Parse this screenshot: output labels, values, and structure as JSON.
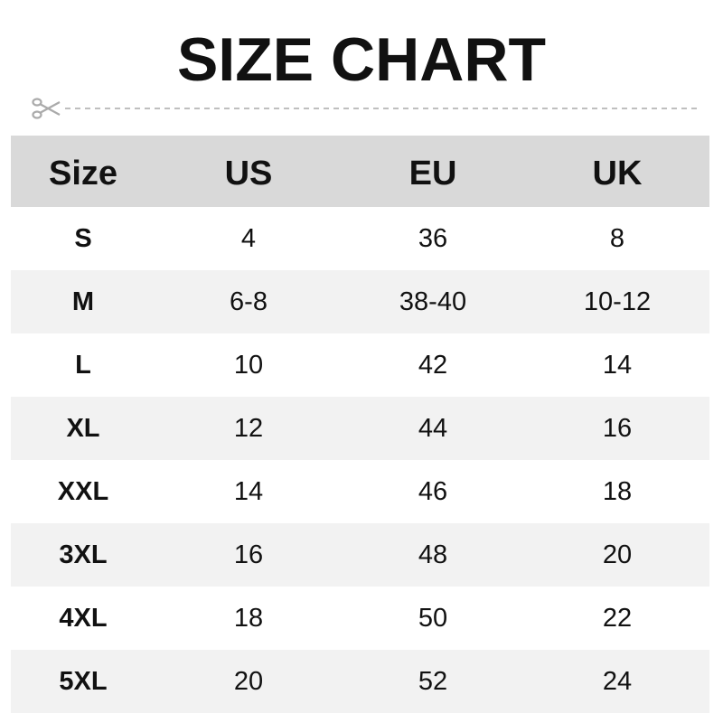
{
  "title": "SIZE CHART",
  "colors": {
    "header_bg": "#d9d9d9",
    "alt_row_bg": "#f2f2f2",
    "cut_line": "#aaaaaa"
  },
  "icons": {
    "cut_line": "scissors-icon"
  },
  "table": {
    "headers": [
      "Size",
      "US",
      "EU",
      "UK"
    ],
    "rows": [
      [
        "S",
        "4",
        "36",
        "8"
      ],
      [
        "M",
        "6-8",
        "38-40",
        "10-12"
      ],
      [
        "L",
        "10",
        "42",
        "14"
      ],
      [
        "XL",
        "12",
        "44",
        "16"
      ],
      [
        "XXL",
        "14",
        "46",
        "18"
      ],
      [
        "3XL",
        "16",
        "48",
        "20"
      ],
      [
        "4XL",
        "18",
        "50",
        "22"
      ],
      [
        "5XL",
        "20",
        "52",
        "24"
      ]
    ]
  }
}
